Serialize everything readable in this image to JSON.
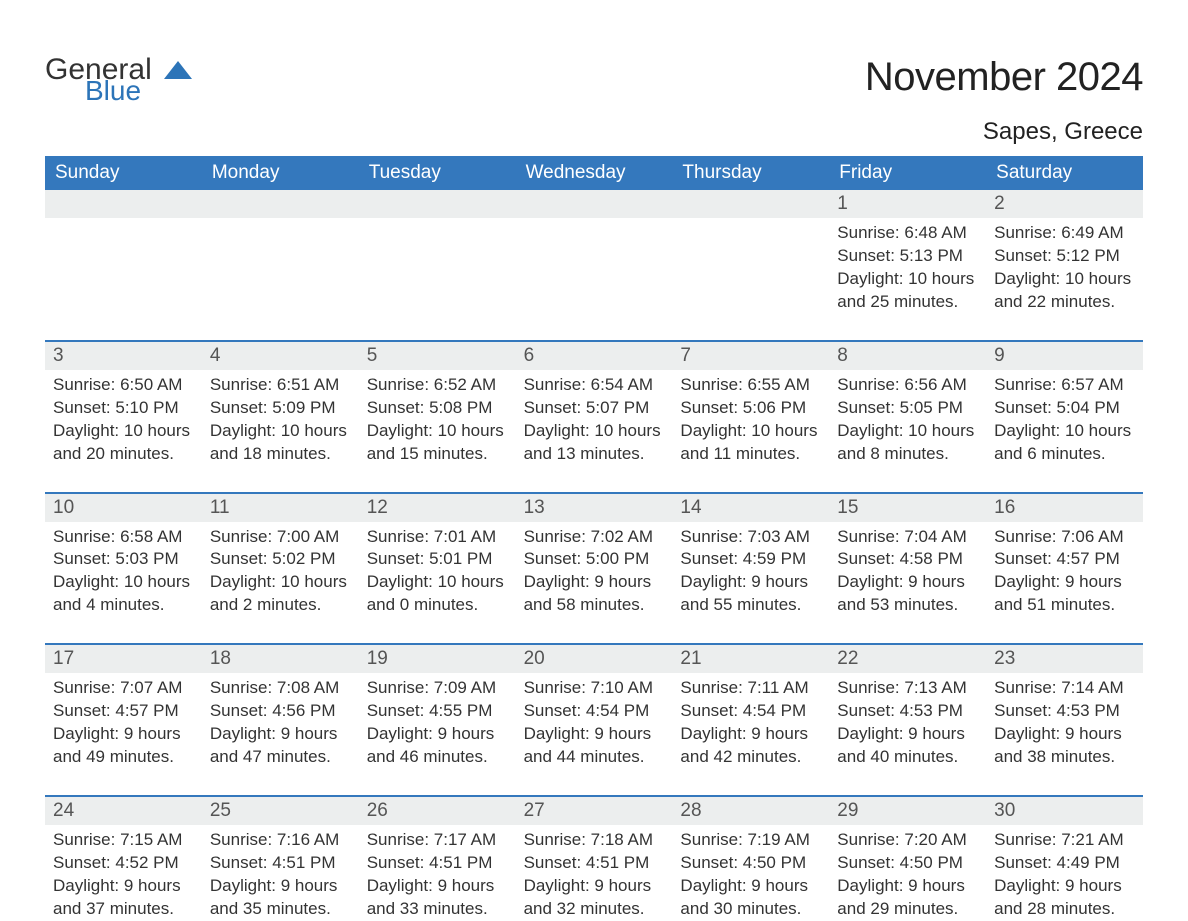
{
  "brand": {
    "text_general": "General",
    "text_blue": "Blue",
    "triangle_color": "#2c74b8"
  },
  "title": "November 2024",
  "location": "Sapes, Greece",
  "colors": {
    "header_bg": "#3478bd",
    "header_text": "#ffffff",
    "daynum_bg": "#eceeee",
    "rule": "#3478bd",
    "body_text": "#333333",
    "background": "#ffffff"
  },
  "fonts": {
    "title_size_pt": 30,
    "location_size_pt": 18,
    "weekday_size_pt": 14,
    "daynum_size_pt": 14,
    "body_size_pt": 13
  },
  "weekdays": [
    "Sunday",
    "Monday",
    "Tuesday",
    "Wednesday",
    "Thursday",
    "Friday",
    "Saturday"
  ],
  "weeks": [
    [
      {
        "num": "",
        "sunrise": "",
        "sunset": "",
        "daylight": ""
      },
      {
        "num": "",
        "sunrise": "",
        "sunset": "",
        "daylight": ""
      },
      {
        "num": "",
        "sunrise": "",
        "sunset": "",
        "daylight": ""
      },
      {
        "num": "",
        "sunrise": "",
        "sunset": "",
        "daylight": ""
      },
      {
        "num": "",
        "sunrise": "",
        "sunset": "",
        "daylight": ""
      },
      {
        "num": "1",
        "sunrise": "Sunrise: 6:48 AM",
        "sunset": "Sunset: 5:13 PM",
        "daylight": "Daylight: 10 hours and 25 minutes."
      },
      {
        "num": "2",
        "sunrise": "Sunrise: 6:49 AM",
        "sunset": "Sunset: 5:12 PM",
        "daylight": "Daylight: 10 hours and 22 minutes."
      }
    ],
    [
      {
        "num": "3",
        "sunrise": "Sunrise: 6:50 AM",
        "sunset": "Sunset: 5:10 PM",
        "daylight": "Daylight: 10 hours and 20 minutes."
      },
      {
        "num": "4",
        "sunrise": "Sunrise: 6:51 AM",
        "sunset": "Sunset: 5:09 PM",
        "daylight": "Daylight: 10 hours and 18 minutes."
      },
      {
        "num": "5",
        "sunrise": "Sunrise: 6:52 AM",
        "sunset": "Sunset: 5:08 PM",
        "daylight": "Daylight: 10 hours and 15 minutes."
      },
      {
        "num": "6",
        "sunrise": "Sunrise: 6:54 AM",
        "sunset": "Sunset: 5:07 PM",
        "daylight": "Daylight: 10 hours and 13 minutes."
      },
      {
        "num": "7",
        "sunrise": "Sunrise: 6:55 AM",
        "sunset": "Sunset: 5:06 PM",
        "daylight": "Daylight: 10 hours and 11 minutes."
      },
      {
        "num": "8",
        "sunrise": "Sunrise: 6:56 AM",
        "sunset": "Sunset: 5:05 PM",
        "daylight": "Daylight: 10 hours and 8 minutes."
      },
      {
        "num": "9",
        "sunrise": "Sunrise: 6:57 AM",
        "sunset": "Sunset: 5:04 PM",
        "daylight": "Daylight: 10 hours and 6 minutes."
      }
    ],
    [
      {
        "num": "10",
        "sunrise": "Sunrise: 6:58 AM",
        "sunset": "Sunset: 5:03 PM",
        "daylight": "Daylight: 10 hours and 4 minutes."
      },
      {
        "num": "11",
        "sunrise": "Sunrise: 7:00 AM",
        "sunset": "Sunset: 5:02 PM",
        "daylight": "Daylight: 10 hours and 2 minutes."
      },
      {
        "num": "12",
        "sunrise": "Sunrise: 7:01 AM",
        "sunset": "Sunset: 5:01 PM",
        "daylight": "Daylight: 10 hours and 0 minutes."
      },
      {
        "num": "13",
        "sunrise": "Sunrise: 7:02 AM",
        "sunset": "Sunset: 5:00 PM",
        "daylight": "Daylight: 9 hours and 58 minutes."
      },
      {
        "num": "14",
        "sunrise": "Sunrise: 7:03 AM",
        "sunset": "Sunset: 4:59 PM",
        "daylight": "Daylight: 9 hours and 55 minutes."
      },
      {
        "num": "15",
        "sunrise": "Sunrise: 7:04 AM",
        "sunset": "Sunset: 4:58 PM",
        "daylight": "Daylight: 9 hours and 53 minutes."
      },
      {
        "num": "16",
        "sunrise": "Sunrise: 7:06 AM",
        "sunset": "Sunset: 4:57 PM",
        "daylight": "Daylight: 9 hours and 51 minutes."
      }
    ],
    [
      {
        "num": "17",
        "sunrise": "Sunrise: 7:07 AM",
        "sunset": "Sunset: 4:57 PM",
        "daylight": "Daylight: 9 hours and 49 minutes."
      },
      {
        "num": "18",
        "sunrise": "Sunrise: 7:08 AM",
        "sunset": "Sunset: 4:56 PM",
        "daylight": "Daylight: 9 hours and 47 minutes."
      },
      {
        "num": "19",
        "sunrise": "Sunrise: 7:09 AM",
        "sunset": "Sunset: 4:55 PM",
        "daylight": "Daylight: 9 hours and 46 minutes."
      },
      {
        "num": "20",
        "sunrise": "Sunrise: 7:10 AM",
        "sunset": "Sunset: 4:54 PM",
        "daylight": "Daylight: 9 hours and 44 minutes."
      },
      {
        "num": "21",
        "sunrise": "Sunrise: 7:11 AM",
        "sunset": "Sunset: 4:54 PM",
        "daylight": "Daylight: 9 hours and 42 minutes."
      },
      {
        "num": "22",
        "sunrise": "Sunrise: 7:13 AM",
        "sunset": "Sunset: 4:53 PM",
        "daylight": "Daylight: 9 hours and 40 minutes."
      },
      {
        "num": "23",
        "sunrise": "Sunrise: 7:14 AM",
        "sunset": "Sunset: 4:53 PM",
        "daylight": "Daylight: 9 hours and 38 minutes."
      }
    ],
    [
      {
        "num": "24",
        "sunrise": "Sunrise: 7:15 AM",
        "sunset": "Sunset: 4:52 PM",
        "daylight": "Daylight: 9 hours and 37 minutes."
      },
      {
        "num": "25",
        "sunrise": "Sunrise: 7:16 AM",
        "sunset": "Sunset: 4:51 PM",
        "daylight": "Daylight: 9 hours and 35 minutes."
      },
      {
        "num": "26",
        "sunrise": "Sunrise: 7:17 AM",
        "sunset": "Sunset: 4:51 PM",
        "daylight": "Daylight: 9 hours and 33 minutes."
      },
      {
        "num": "27",
        "sunrise": "Sunrise: 7:18 AM",
        "sunset": "Sunset: 4:51 PM",
        "daylight": "Daylight: 9 hours and 32 minutes."
      },
      {
        "num": "28",
        "sunrise": "Sunrise: 7:19 AM",
        "sunset": "Sunset: 4:50 PM",
        "daylight": "Daylight: 9 hours and 30 minutes."
      },
      {
        "num": "29",
        "sunrise": "Sunrise: 7:20 AM",
        "sunset": "Sunset: 4:50 PM",
        "daylight": "Daylight: 9 hours and 29 minutes."
      },
      {
        "num": "30",
        "sunrise": "Sunrise: 7:21 AM",
        "sunset": "Sunset: 4:49 PM",
        "daylight": "Daylight: 9 hours and 28 minutes."
      }
    ]
  ]
}
